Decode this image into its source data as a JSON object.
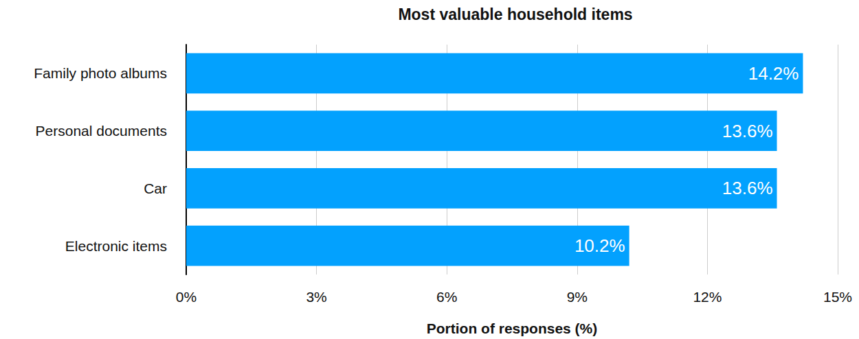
{
  "chart_data": {
    "type": "bar",
    "orientation": "horizontal",
    "title": "Most valuable household items",
    "x_label": "Portion of responses (%)",
    "categories": [
      "Family photo albums",
      "Personal documents",
      "Car",
      "Electronic items"
    ],
    "values": [
      14.2,
      13.6,
      13.6,
      10.2
    ],
    "value_labels": [
      "14.2%",
      "13.6%",
      "13.6%",
      "10.2%"
    ],
    "color": "#03a1fe",
    "xlim": [
      0,
      15
    ],
    "xticks": [
      {
        "value": 0,
        "label": "0%"
      },
      {
        "value": 3,
        "label": "3%"
      },
      {
        "value": 6,
        "label": "6%"
      },
      {
        "value": 9,
        "label": "9%"
      },
      {
        "value": 12,
        "label": "12%"
      },
      {
        "value": 15,
        "label": "15%"
      }
    ],
    "grid": true,
    "data_labels": true
  }
}
